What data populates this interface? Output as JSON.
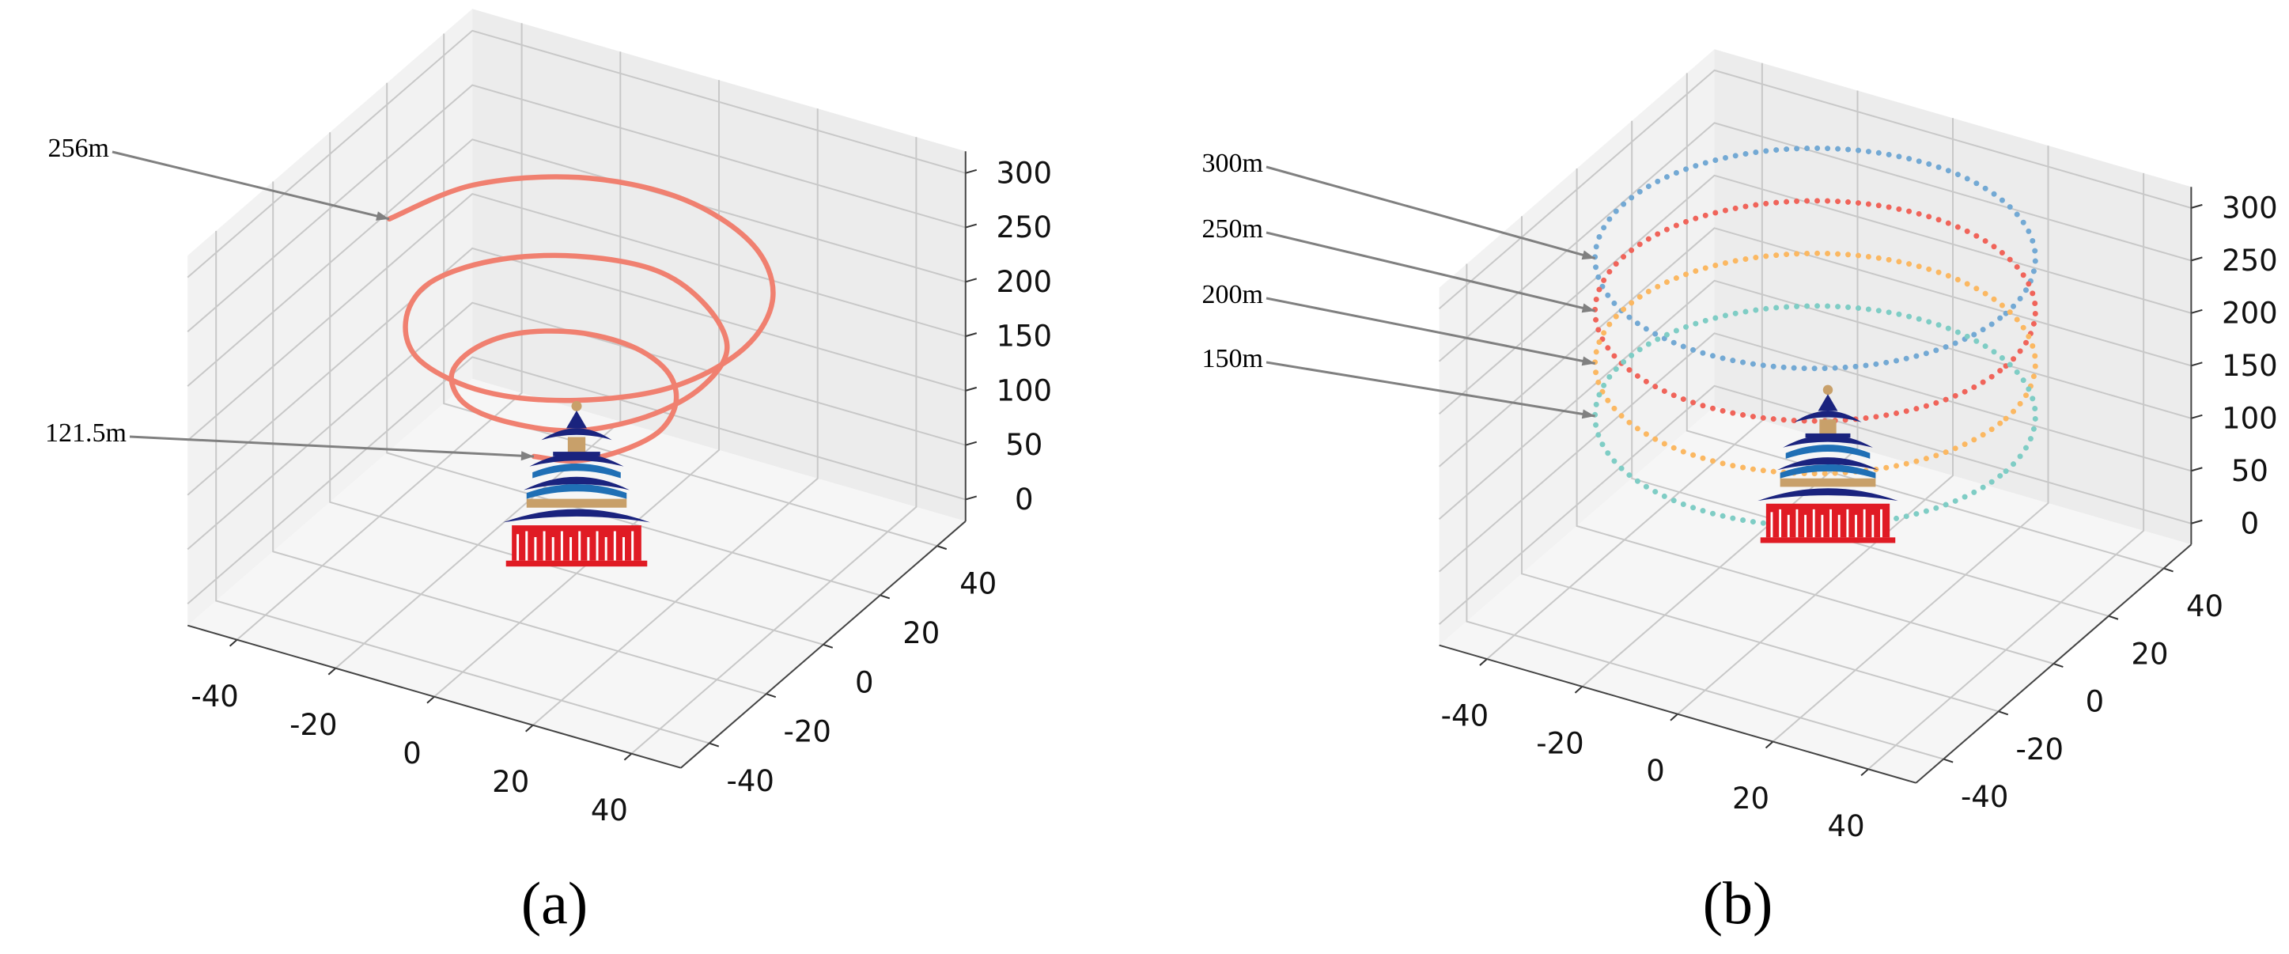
{
  "chart_data": [
    {
      "type": "line3d",
      "label": "(a)",
      "xlim": [
        -50,
        50
      ],
      "ylim": [
        -50,
        50
      ],
      "zlim": [
        -20,
        320
      ],
      "xticks": [
        -40,
        -20,
        0,
        20,
        40
      ],
      "yticks": [
        -40,
        -20,
        0,
        20,
        40
      ],
      "zticks": [
        0,
        50,
        100,
        150,
        200,
        250,
        300
      ],
      "grid": true,
      "annotations": [
        "256m",
        "121.5m"
      ],
      "series": [
        {
          "color": "#f08070",
          "x": [
            0,
            8,
            14,
            17,
            15,
            9,
            0,
            -10,
            -18,
            -21,
            -19,
            -11,
            0,
            12,
            21,
            25,
            23,
            13,
            0,
            -14,
            -25,
            -30,
            -26,
            -16,
            0,
            16,
            29,
            34,
            30,
            18,
            0,
            -18,
            -32,
            -38
          ],
          "y": [
            -15,
            -14,
            -8,
            0,
            9,
            16,
            19,
            17,
            10,
            0,
            -11,
            -20,
            -23,
            -21,
            -12,
            0,
            13,
            23,
            28,
            24,
            14,
            0,
            -15,
            -27,
            -32,
            -28,
            -17,
            0,
            17,
            30,
            36,
            32,
            19,
            0
          ],
          "z": [
            121.5,
            125.6,
            129.7,
            133.7,
            137.8,
            141.9,
            146,
            150,
            154.1,
            158.2,
            162.3,
            166.3,
            170.4,
            174.5,
            178.6,
            182.6,
            186.7,
            190.8,
            194.9,
            198.9,
            203,
            207.1,
            211.2,
            215.2,
            219.3,
            223.4,
            227.5,
            231.5,
            235.6,
            239.7,
            243.8,
            247.8,
            251.9,
            256
          ]
        }
      ]
    },
    {
      "type": "rings3d",
      "label": "(b)",
      "xlim": [
        -50,
        50
      ],
      "ylim": [
        -50,
        50
      ],
      "zlim": [
        -20,
        320
      ],
      "xticks": [
        -40,
        -20,
        0,
        20,
        40
      ],
      "yticks": [
        -40,
        -20,
        0,
        20,
        40
      ],
      "zticks": [
        0,
        50,
        100,
        150,
        200,
        250,
        300
      ],
      "grid": true,
      "series": [
        {
          "name": "300m",
          "color": "#73a9d4",
          "z": 300,
          "radius": 40
        },
        {
          "name": "250m",
          "color": "#f0645a",
          "z": 250,
          "radius": 40
        },
        {
          "name": "200m",
          "color": "#fbb862",
          "z": 200,
          "radius": 40
        },
        {
          "name": "150m",
          "color": "#7fcdc5",
          "z": 150,
          "radius": 40
        }
      ]
    }
  ]
}
